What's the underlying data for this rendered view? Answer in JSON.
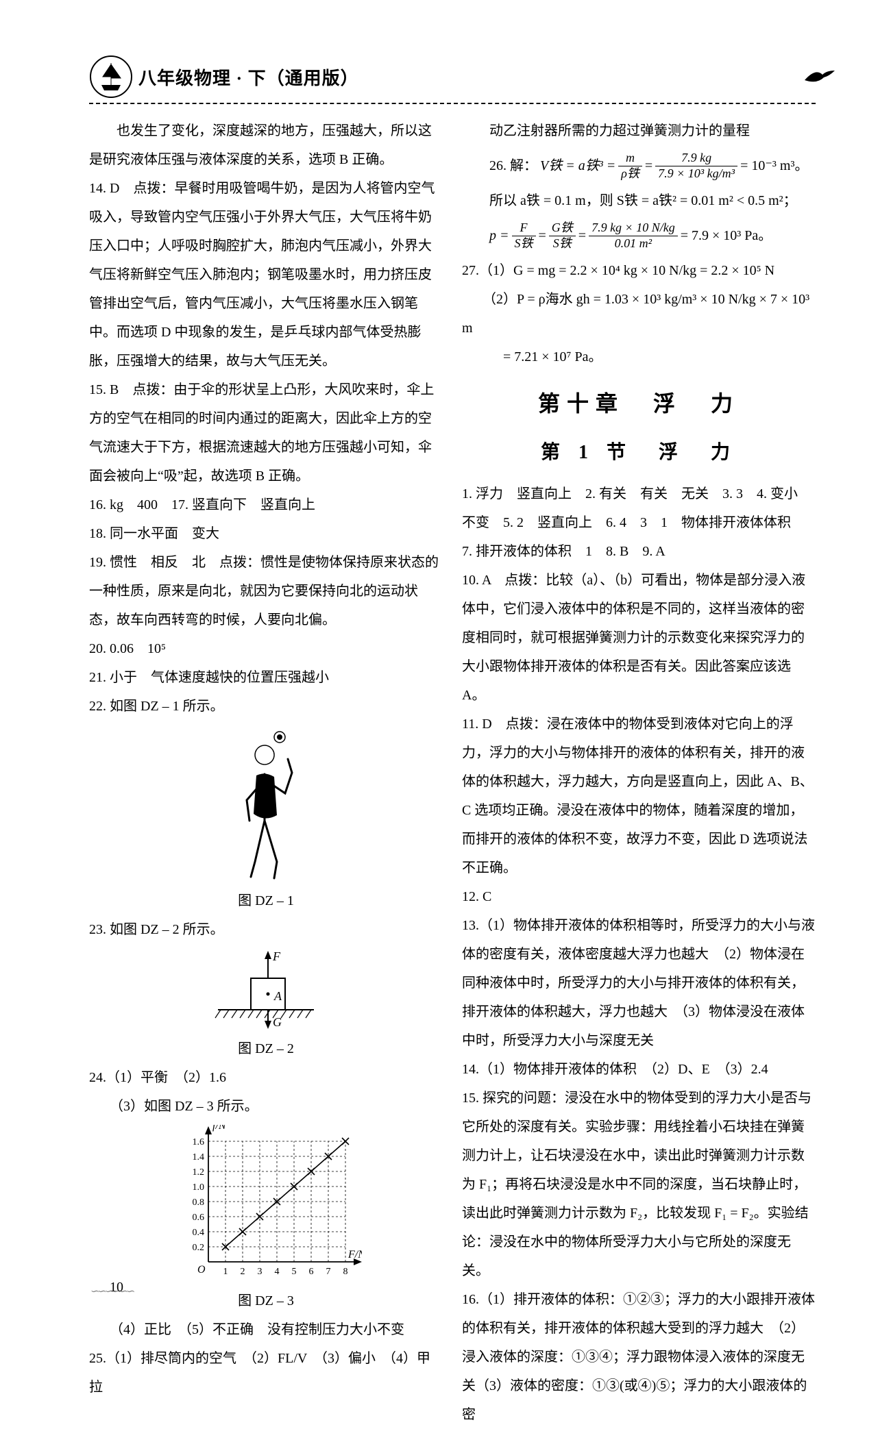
{
  "header": {
    "title": "八年级物理 · 下（通用版）"
  },
  "left_col": {
    "p_cont": "　　也发生了变化，深度越深的地方，压强越大，所以这是研究液体压强与液体深度的关系，选项 B 正确。",
    "p14": "14. D　点拨：早餐时用吸管喝牛奶，是因为人将管内空气吸入，导致管内空气压强小于外界大气压，大气压将牛奶压入口中；人呼吸时胸腔扩大，肺泡内气压减小，外界大气压将新鲜空气压入肺泡内；钢笔吸墨水时，用力挤压皮管排出空气后，管内气压减小，大气压将墨水压入钢笔中。而选项 D 中现象的发生，是乒乓球内部气体受热膨胀，压强增大的结果，故与大气压无关。",
    "p15": "15. B　点拨：由于伞的形状呈上凸形，大风吹来时，伞上方的空气在相同的时间内通过的距离大，因此伞上方的空气流速大于下方，根据流速越大的地方压强越小可知，伞面会被向上“吸”起，故选项 B 正确。",
    "p16": "16. kg　400　17. 竖直向下　竖直向上",
    "p18": "18. 同一水平面　变大",
    "p19": "19. 惯性　相反　北　点拨：惯性是使物体保持原来状态的一种性质，原来是向北，就因为它要保持向北的运动状态，故车向西转弯的时候，人要向北偏。",
    "p20": "20. 0.06　10⁵",
    "p21": "21. 小于　气体速度越快的位置压强越小",
    "p22": "22. 如图 DZ – 1 所示。",
    "fig1_label": "图 DZ – 1",
    "p23": "23. 如图 DZ – 2 所示。",
    "fig2_label": "图 DZ – 2",
    "p24_1": "24.（1）平衡　（2）1.6",
    "p24_3": "　　（3）如图 DZ – 3 所示。",
    "fig3_label": "图 DZ – 3",
    "p24_4": "　　（4）正比　（5）不正确　没有控制压力大小不变",
    "p25": "25.（1）排尽筒内的空气　（2）FL/V　（3）偏小　（4）甲　拉",
    "chart": {
      "ylabel": "f/N",
      "xlabel": "F/N",
      "xticks": [
        1,
        2,
        3,
        4,
        5,
        6,
        7,
        8
      ],
      "yticks": [
        0.2,
        0.4,
        0.6,
        0.8,
        1.0,
        1.2,
        1.4,
        1.6
      ],
      "points": [
        [
          1,
          0.2
        ],
        [
          2,
          0.4
        ],
        [
          3,
          0.6
        ],
        [
          4,
          0.8
        ],
        [
          5,
          1.0
        ],
        [
          6,
          1.2
        ],
        [
          7,
          1.4
        ],
        [
          8,
          1.6
        ]
      ],
      "axis_color": "#000000",
      "point_color": "#000000",
      "grid_color": "#000000"
    }
  },
  "right_col": {
    "p_cont": "　　动乙注射器所需的力超过弹簧测力计的量程",
    "p26_intro": "26. 解：",
    "p26_a": "V铁 = a铁³ =",
    "p26_frac1_num": "m",
    "p26_frac1_den": "ρ铁",
    "p26_frac2_num": "7.9 kg",
    "p26_frac2_den": "7.9 × 10³ kg/m³",
    "p26_eqres": "= 10⁻³ m³。",
    "p26_b": "　　所以 a铁 = 0.1 m，则 S铁 = a铁² = 0.01 m² < 0.5 m²；",
    "p26_c_pre": "p =",
    "p26_f1_num": "F",
    "p26_f1_den": "S铁",
    "p26_f2_num": "G铁",
    "p26_f2_den": "S铁",
    "p26_f3_num": "7.9 kg × 10 N/kg",
    "p26_f3_den": "0.01 m²",
    "p26_c_res": "= 7.9 × 10³ Pa。",
    "p27_1": "27.（1）G = mg = 2.2 × 10⁴ kg × 10 N/kg = 2.2 × 10⁵ N",
    "p27_2": "　　（2）P = ρ海水 gh = 1.03 × 10³ kg/m³ × 10 N/kg × 7 × 10³ m",
    "p27_3": "　　　= 7.21 × 10⁷ Pa。",
    "chapter": "第十章　浮　力",
    "section": "第 1 节　浮　力",
    "p1": "1. 浮力　竖直向上　2. 有关　有关　无关　3. 3　4. 变小",
    "p1b": "不变　5. 2　竖直向上　6. 4　3　1　物体排开液体体积",
    "p7": "7. 排开液体的体积　1　8. B　9. A",
    "p10": "10. A　点拨：比较（a）、（b）可看出，物体是部分浸入液体中，它们浸入液体中的体积是不同的，这样当液体的密度相同时，就可根据弹簧测力计的示数变化来探究浮力的大小跟物体排开液体的体积是否有关。因此答案应该选 A。",
    "p11": "11. D　点拨：浸在液体中的物体受到液体对它向上的浮力，浮力的大小与物体排开的液体的体积有关，排开的液体的体积越大，浮力越大，方向是竖直向上，因此 A、B、C 选项均正确。浸没在液体中的物体，随着深度的增加，而排开的液体的体积不变，故浮力不变，因此 D 选项说法不正确。",
    "p12": "12. C",
    "p13": "13.（1）物体排开液体的体积相等时，所受浮力的大小与液体的密度有关，液体密度越大浮力也越大　（2）物体浸在同种液体中时，所受浮力的大小与排开液体的体积有关，排开液体的体积越大，浮力也越大　（3）物体浸没在液体中时，所受浮力大小与深度无关",
    "p14": "14.（1）物体排开液体的体积　（2）D、E　（3）2.4",
    "p15": "15. 探究的问题：浸没在水中的物体受到的浮力大小是否与它所处的深度有关。实验步骤：用线拴着小石块挂在弹簧测力计上，让石块浸没在水中，读出此时弹簧测力计示数为 F₁；再将石块浸没是水中不同的深度，当石块静止时，读出此时弹簧测力计示数为 F₂，比较发现 F₁ = F₂。实验结论：浸没在水中的物体所受浮力大小与它所处的深度无关。",
    "p16": "16.（1）排开液体的体积：①②③；浮力的大小跟排开液体的体积有关，排开液体的体积越大受到的浮力越大　（2）浸入液体的深度：①③④；浮力跟物体浸入液体的深度无关（3）液体的密度：①③(或④)⑤；浮力的大小跟液体的密"
  },
  "page_number": "10"
}
